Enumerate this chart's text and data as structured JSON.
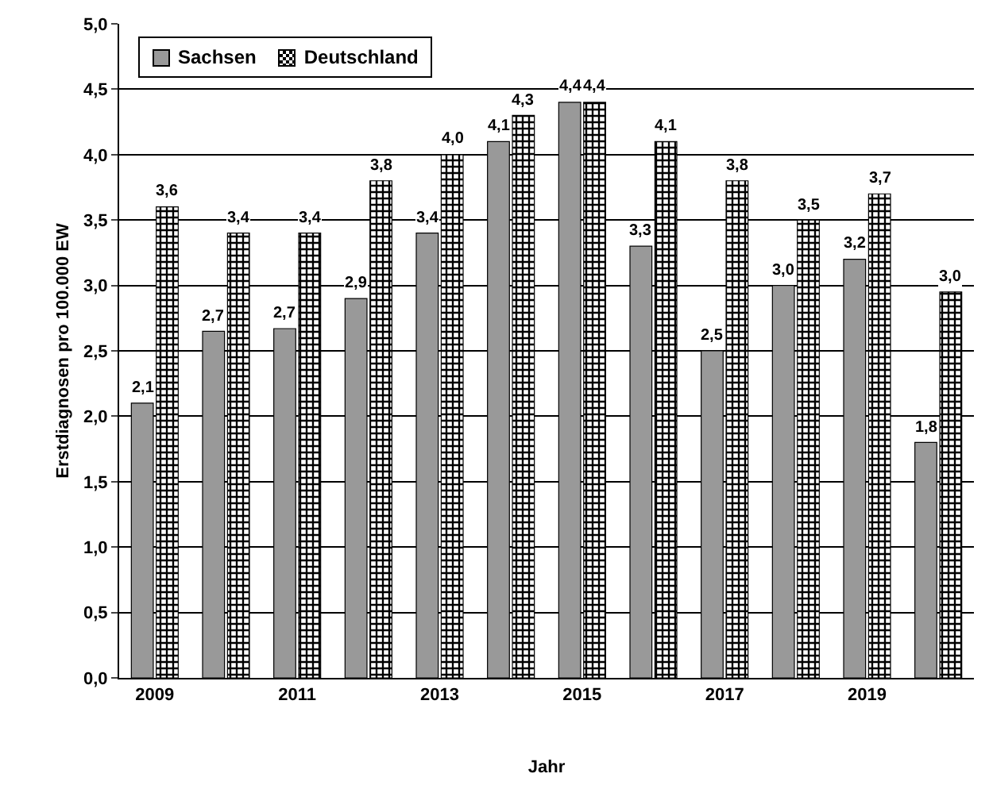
{
  "chart_data": {
    "type": "bar",
    "xlabel": "Jahr",
    "ylabel": "Erstdiagnosen pro 100.000 EW",
    "categories": [
      "2009",
      null,
      "2011",
      null,
      "2013",
      null,
      "2015",
      null,
      "2017",
      null,
      "2019",
      null
    ],
    "series": [
      {
        "name": "Sachsen",
        "color": "#999999",
        "values": [
          2.1,
          2.65,
          2.67,
          2.9,
          3.4,
          4.1,
          4.4,
          3.3,
          2.5,
          3.0,
          3.2,
          1.8
        ],
        "value_labels": [
          "2,1",
          "2,7",
          "2,7",
          "2,9",
          "3,4",
          "4,1",
          "4,4",
          "3,3",
          "2,5",
          "3,0",
          "3,2",
          "1,8"
        ]
      },
      {
        "name": "Deutschland",
        "color": "#000000",
        "values": [
          3.6,
          3.4,
          3.4,
          3.8,
          4.0,
          4.3,
          4.4,
          4.1,
          3.8,
          3.5,
          3.7,
          2.95
        ],
        "value_labels": [
          "3,6",
          "3,4",
          "3,4",
          "3,8",
          "4,0",
          "4,3",
          "4,4",
          "4,1",
          "3,8",
          "3,5",
          "3,7",
          "3,0"
        ]
      }
    ],
    "ylim": [
      0,
      5
    ],
    "yticks": [
      {
        "value": 0,
        "label": "0,0"
      },
      {
        "value": 0.5,
        "label": "0,5"
      },
      {
        "value": 1,
        "label": "1,0"
      },
      {
        "value": 1.5,
        "label": "1,5"
      },
      {
        "value": 2,
        "label": "2,0"
      },
      {
        "value": 2.5,
        "label": "2,5"
      },
      {
        "value": 3,
        "label": "3,0"
      },
      {
        "value": 3.5,
        "label": "3,5"
      },
      {
        "value": 4,
        "label": "4,0"
      },
      {
        "value": 4.5,
        "label": "4,5"
      },
      {
        "value": 5,
        "label": "5,0"
      }
    ],
    "grid": "y",
    "legend": "top left"
  }
}
